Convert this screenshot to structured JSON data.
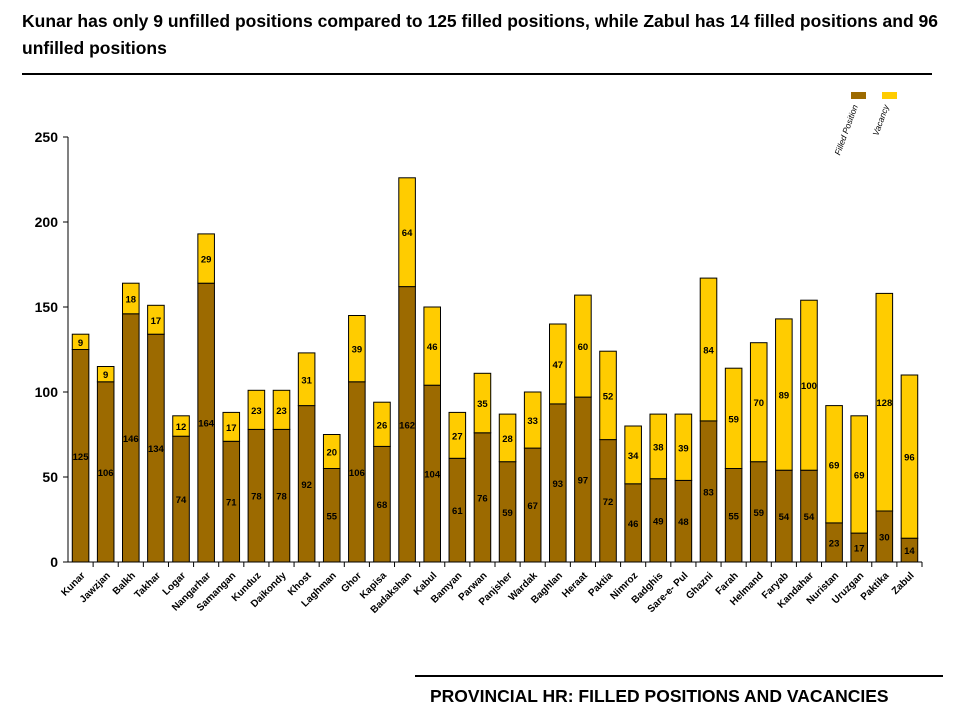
{
  "headline": "Kunar has only 9 unfilled positions compared to 125 filled positions, while Zabul has 14 filled positions and 96 unfilled positions",
  "footer_title": "PROVINCIAL HR: FILLED POSITIONS AND VACANCIES",
  "colors": {
    "filled": "#9C6A00",
    "vacancy": "#FFCC00",
    "outline": "#000000"
  },
  "chart_data": {
    "type": "bar",
    "stacked": true,
    "ylim": [
      0,
      250
    ],
    "yticks": [
      0,
      50,
      100,
      150,
      200,
      250
    ],
    "legend_position": "top-right",
    "categories": [
      "Kunar",
      "Jawzjan",
      "Balkh",
      "Takhar",
      "Logar",
      "Nangarhar",
      "Samangan",
      "Kunduz",
      "Daikondy",
      "Khost",
      "Laghman",
      "Ghor",
      "Kapisa",
      "Badakshan",
      "Kabul",
      "Bamyan",
      "Parwan",
      "Panjsher",
      "Wardak",
      "Baghlan",
      "Heraat",
      "Paktia",
      "Nimroz",
      "Badghis",
      "Sare-e- Pul",
      "Ghazni",
      "Farah",
      "Helmand",
      "Faryab",
      "Kandahar",
      "Nuristan",
      "Uruzgan",
      "Paktika",
      "Zabul"
    ],
    "series": [
      {
        "name": "Filled Position",
        "values": [
          125,
          106,
          146,
          134,
          74,
          164,
          71,
          78,
          78,
          92,
          55,
          106,
          68,
          162,
          104,
          61,
          76,
          59,
          67,
          93,
          97,
          72,
          46,
          49,
          48,
          83,
          55,
          59,
          54,
          54,
          23,
          17,
          30,
          14
        ]
      },
      {
        "name": "Vacancy",
        "values": [
          9,
          9,
          18,
          17,
          12,
          29,
          17,
          23,
          23,
          31,
          20,
          39,
          26,
          64,
          46,
          27,
          35,
          28,
          33,
          47,
          60,
          52,
          34,
          38,
          39,
          84,
          59,
          70,
          89,
          100,
          69,
          69,
          128,
          96
        ]
      }
    ]
  }
}
